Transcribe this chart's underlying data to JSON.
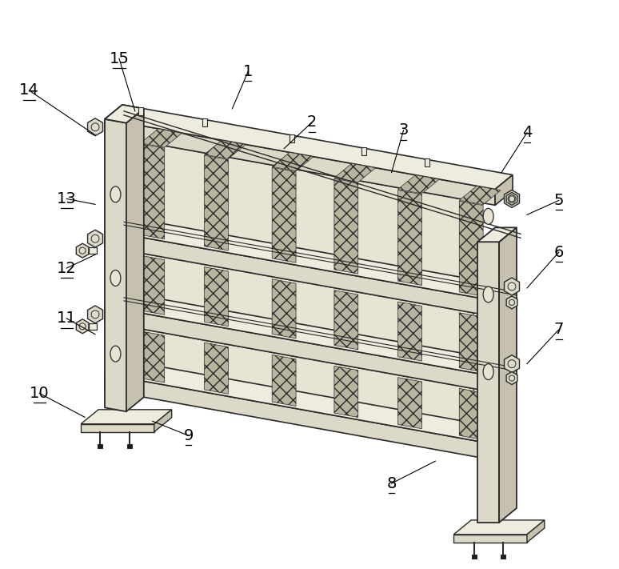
{
  "bg_color": "#ffffff",
  "c_face": "#ddd9c8",
  "c_top": "#eceadc",
  "c_side": "#c8c4b0",
  "c_hatch_face": "#c0bcac",
  "c_edge": "#2a2a2a",
  "label_fontsize": 14,
  "figsize": [
    7.74,
    7.11
  ],
  "dpi": 100,
  "labels": [
    [
      "1",
      310,
      88,
      290,
      135
    ],
    [
      "2",
      390,
      152,
      355,
      185
    ],
    [
      "3",
      505,
      162,
      490,
      215
    ],
    [
      "4",
      660,
      165,
      628,
      215
    ],
    [
      "5",
      700,
      250,
      660,
      268
    ],
    [
      "6",
      700,
      315,
      660,
      360
    ],
    [
      "7",
      700,
      412,
      660,
      455
    ],
    [
      "8",
      490,
      605,
      545,
      577
    ],
    [
      "9",
      235,
      545,
      190,
      527
    ],
    [
      "10",
      48,
      492,
      105,
      522
    ],
    [
      "11",
      82,
      398,
      118,
      418
    ],
    [
      "12",
      82,
      335,
      118,
      318
    ],
    [
      "13",
      82,
      248,
      118,
      255
    ],
    [
      "14",
      35,
      112,
      118,
      168
    ],
    [
      "15",
      148,
      72,
      168,
      138
    ]
  ]
}
